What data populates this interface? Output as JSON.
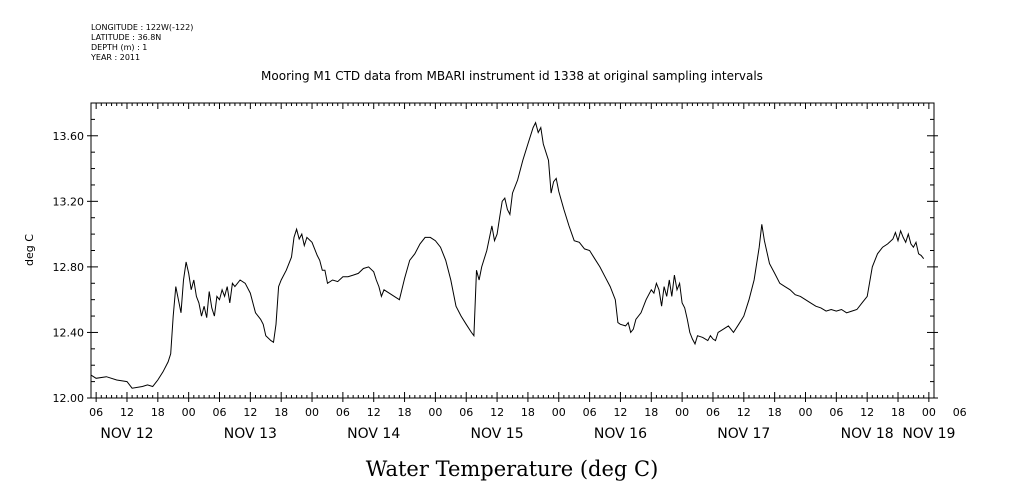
{
  "metadata": {
    "longitude": "LONGITUDE : 122W(-122)",
    "latitude": "LATITUDE : 36.8N",
    "depth": "DEPTH (m) : 1",
    "year": "YEAR : 2011"
  },
  "chart_data": {
    "type": "line",
    "title": "Mooring M1 CTD data from MBARI instrument id 1338 at original sampling intervals",
    "xlabel": "Water Temperature (deg C)",
    "ylabel": "deg C",
    "ylim": [
      12.0,
      13.8
    ],
    "y_ticks": [
      "12.00",
      "12.40",
      "12.80",
      "13.20",
      "13.60"
    ],
    "x_unit": "hours since Nov 12 00:00",
    "xlim": [
      5,
      169
    ],
    "hour_ticks": [
      "06",
      "12",
      "18",
      "00",
      "06",
      "12",
      "18",
      "00",
      "06",
      "12",
      "18",
      "00",
      "06",
      "12",
      "18",
      "00",
      "06",
      "12",
      "18",
      "00",
      "06",
      "12",
      "18",
      "00",
      "06",
      "12",
      "18",
      "00",
      "06"
    ],
    "day_labels": [
      "NOV 12",
      "NOV 13",
      "NOV 14",
      "NOV 15",
      "NOV 16",
      "NOV 17",
      "NOV 18",
      "NOV 19"
    ],
    "grid": false,
    "series": [
      {
        "values": [
          [
            5,
            12.14
          ],
          [
            6,
            12.12
          ],
          [
            8,
            12.13
          ],
          [
            10,
            12.11
          ],
          [
            12,
            12.1
          ],
          [
            13,
            12.06
          ],
          [
            15,
            12.07
          ],
          [
            16,
            12.08
          ],
          [
            17,
            12.07
          ],
          [
            18,
            12.11
          ],
          [
            19,
            12.16
          ],
          [
            20,
            12.22
          ],
          [
            20.5,
            12.27
          ],
          [
            21,
            12.5
          ],
          [
            21.5,
            12.68
          ],
          [
            22,
            12.6
          ],
          [
            22.5,
            12.52
          ],
          [
            23,
            12.72
          ],
          [
            23.5,
            12.83
          ],
          [
            24,
            12.76
          ],
          [
            24.5,
            12.66
          ],
          [
            25,
            12.72
          ],
          [
            25.5,
            12.62
          ],
          [
            26,
            12.58
          ],
          [
            26.5,
            12.5
          ],
          [
            27,
            12.56
          ],
          [
            27.5,
            12.49
          ],
          [
            28,
            12.65
          ],
          [
            28.5,
            12.55
          ],
          [
            29,
            12.5
          ],
          [
            29.5,
            12.62
          ],
          [
            30,
            12.6
          ],
          [
            30.5,
            12.66
          ],
          [
            31,
            12.62
          ],
          [
            31.5,
            12.68
          ],
          [
            32,
            12.58
          ],
          [
            32.5,
            12.7
          ],
          [
            33,
            12.68
          ],
          [
            34,
            12.72
          ],
          [
            35,
            12.7
          ],
          [
            36,
            12.64
          ],
          [
            37,
            12.52
          ],
          [
            38,
            12.48
          ],
          [
            38.5,
            12.45
          ],
          [
            39,
            12.38
          ],
          [
            40,
            12.35
          ],
          [
            40.5,
            12.34
          ],
          [
            41,
            12.45
          ],
          [
            41.5,
            12.68
          ],
          [
            42,
            12.72
          ],
          [
            43,
            12.78
          ],
          [
            44,
            12.86
          ],
          [
            44.5,
            12.98
          ],
          [
            45,
            13.03
          ],
          [
            45.5,
            12.97
          ],
          [
            46,
            13.0
          ],
          [
            46.5,
            12.93
          ],
          [
            47,
            12.98
          ],
          [
            48,
            12.95
          ],
          [
            49,
            12.87
          ],
          [
            49.5,
            12.84
          ],
          [
            50,
            12.78
          ],
          [
            50.5,
            12.78
          ],
          [
            51,
            12.7
          ],
          [
            52,
            12.72
          ],
          [
            53,
            12.71
          ],
          [
            54,
            12.74
          ],
          [
            55,
            12.74
          ],
          [
            56,
            12.75
          ],
          [
            57,
            12.76
          ],
          [
            58,
            12.79
          ],
          [
            59,
            12.8
          ],
          [
            60,
            12.77
          ],
          [
            60.5,
            12.72
          ],
          [
            61,
            12.68
          ],
          [
            61.5,
            12.62
          ],
          [
            62,
            12.66
          ],
          [
            63,
            12.64
          ],
          [
            64,
            12.62
          ],
          [
            65,
            12.6
          ],
          [
            66,
            12.73
          ],
          [
            67,
            12.84
          ],
          [
            68,
            12.88
          ],
          [
            69,
            12.94
          ],
          [
            70,
            12.98
          ],
          [
            71,
            12.98
          ],
          [
            72,
            12.96
          ],
          [
            73,
            12.92
          ],
          [
            74,
            12.84
          ],
          [
            75,
            12.72
          ],
          [
            76,
            12.56
          ],
          [
            77,
            12.5
          ],
          [
            78,
            12.45
          ],
          [
            79,
            12.4
          ],
          [
            79.5,
            12.38
          ],
          [
            80,
            12.78
          ],
          [
            80.5,
            12.72
          ],
          [
            81,
            12.8
          ],
          [
            82,
            12.9
          ],
          [
            83,
            13.05
          ],
          [
            83.5,
            12.96
          ],
          [
            84,
            13.0
          ],
          [
            84.5,
            13.1
          ],
          [
            85,
            13.2
          ],
          [
            85.5,
            13.22
          ],
          [
            86,
            13.15
          ],
          [
            86.5,
            13.12
          ],
          [
            87,
            13.25
          ],
          [
            88,
            13.33
          ],
          [
            89,
            13.45
          ],
          [
            90,
            13.55
          ],
          [
            91,
            13.65
          ],
          [
            91.5,
            13.68
          ],
          [
            92,
            13.62
          ],
          [
            92.5,
            13.65
          ],
          [
            93,
            13.55
          ],
          [
            94,
            13.45
          ],
          [
            94.5,
            13.25
          ],
          [
            95,
            13.32
          ],
          [
            95.5,
            13.34
          ],
          [
            96,
            13.26
          ],
          [
            97,
            13.15
          ],
          [
            98,
            13.05
          ],
          [
            99,
            12.96
          ],
          [
            100,
            12.95
          ],
          [
            101,
            12.91
          ],
          [
            102,
            12.9
          ],
          [
            103,
            12.85
          ],
          [
            104,
            12.8
          ],
          [
            105,
            12.74
          ],
          [
            106,
            12.68
          ],
          [
            107,
            12.6
          ],
          [
            107.5,
            12.46
          ],
          [
            108,
            12.45
          ],
          [
            109,
            12.44
          ],
          [
            109.5,
            12.46
          ],
          [
            110,
            12.4
          ],
          [
            110.5,
            12.42
          ],
          [
            111,
            12.48
          ],
          [
            112,
            12.52
          ],
          [
            113,
            12.6
          ],
          [
            114,
            12.66
          ],
          [
            114.5,
            12.64
          ],
          [
            115,
            12.7
          ],
          [
            115.5,
            12.66
          ],
          [
            116,
            12.56
          ],
          [
            116.5,
            12.68
          ],
          [
            117,
            12.62
          ],
          [
            117.5,
            12.72
          ],
          [
            118,
            12.62
          ],
          [
            118.5,
            12.75
          ],
          [
            119,
            12.66
          ],
          [
            119.5,
            12.7
          ],
          [
            120,
            12.58
          ],
          [
            120.5,
            12.55
          ],
          [
            121,
            12.48
          ],
          [
            121.5,
            12.4
          ],
          [
            122,
            12.36
          ],
          [
            122.5,
            12.33
          ],
          [
            123,
            12.38
          ],
          [
            124,
            12.37
          ],
          [
            125,
            12.35
          ],
          [
            125.5,
            12.38
          ],
          [
            126,
            12.36
          ],
          [
            126.5,
            12.35
          ],
          [
            127,
            12.4
          ],
          [
            128,
            12.42
          ],
          [
            129,
            12.44
          ],
          [
            130,
            12.4
          ],
          [
            131,
            12.45
          ],
          [
            132,
            12.5
          ],
          [
            133,
            12.6
          ],
          [
            134,
            12.72
          ],
          [
            135,
            12.92
          ],
          [
            135.5,
            13.06
          ],
          [
            136,
            12.96
          ],
          [
            137,
            12.82
          ],
          [
            138,
            12.76
          ],
          [
            139,
            12.7
          ],
          [
            140,
            12.68
          ],
          [
            141,
            12.66
          ],
          [
            142,
            12.63
          ],
          [
            143,
            12.62
          ],
          [
            144,
            12.6
          ],
          [
            145,
            12.58
          ],
          [
            146,
            12.56
          ],
          [
            147,
            12.55
          ],
          [
            148,
            12.53
          ],
          [
            149,
            12.54
          ],
          [
            150,
            12.53
          ],
          [
            151,
            12.54
          ],
          [
            152,
            12.52
          ],
          [
            153,
            12.53
          ],
          [
            154,
            12.54
          ],
          [
            155,
            12.58
          ],
          [
            156,
            12.62
          ],
          [
            157,
            12.8
          ],
          [
            158,
            12.88
          ],
          [
            159,
            12.92
          ],
          [
            160,
            12.94
          ],
          [
            161,
            12.97
          ],
          [
            161.5,
            13.01
          ],
          [
            162,
            12.96
          ],
          [
            162.5,
            13.02
          ],
          [
            163,
            12.98
          ],
          [
            163.5,
            12.95
          ],
          [
            164,
            13.0
          ],
          [
            164.5,
            12.94
          ],
          [
            165,
            12.92
          ],
          [
            165.5,
            12.95
          ],
          [
            166,
            12.88
          ],
          [
            166.5,
            12.87
          ],
          [
            167,
            12.85
          ]
        ]
      }
    ]
  }
}
